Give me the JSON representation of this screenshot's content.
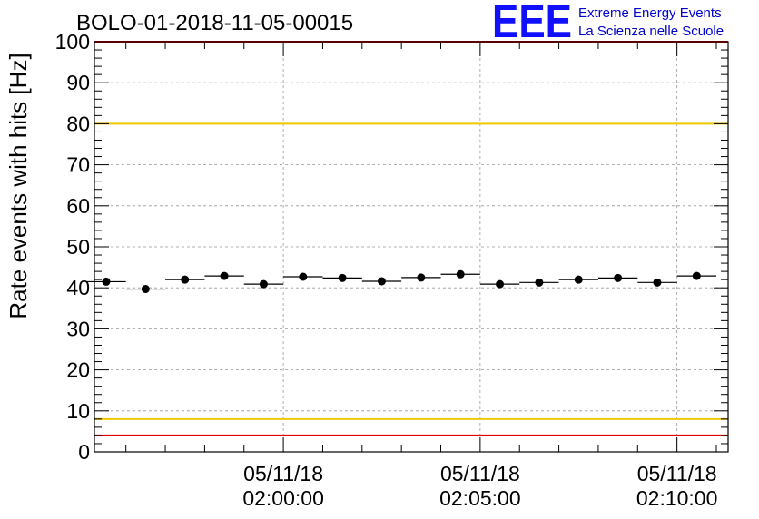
{
  "chart_data": {
    "type": "scatter",
    "title": "BOLO-01-2018-11-05-00015",
    "ylabel": "Rate events with hits [Hz]",
    "xlabel": "",
    "ylim": [
      0,
      100
    ],
    "yticks": [
      "0",
      "10",
      "20",
      "30",
      "40",
      "50",
      "60",
      "70",
      "80",
      "90",
      "100"
    ],
    "xticks": [
      {
        "date": "05/11/18",
        "time": "02:00:00"
      },
      {
        "date": "05/11/18",
        "time": "02:05:00"
      },
      {
        "date": "05/11/18",
        "time": "02:10:00"
      }
    ],
    "x_unit": "minutes after 02:00:00",
    "x_range": [
      -4.8,
      11.3
    ],
    "grid": true,
    "series": [
      {
        "x": [
          -4.5,
          -3.5,
          -2.5,
          -1.5,
          -0.5,
          0.5,
          1.5,
          2.5,
          3.5,
          4.5,
          5.5,
          6.5,
          7.5,
          8.5,
          9.5,
          10.5
        ],
        "x_half_width": 0.5,
        "values": [
          41.5,
          39.7,
          42.0,
          42.9,
          40.9,
          42.7,
          42.4,
          41.6,
          42.5,
          43.3,
          40.9,
          41.3,
          42.0,
          42.4,
          41.3,
          42.9
        ]
      }
    ],
    "reference_lines": [
      {
        "value": 80,
        "color": "#f0c800"
      },
      {
        "value": 8,
        "color": "#f0c800"
      },
      {
        "value": 100,
        "color": "#e00000"
      },
      {
        "value": 4,
        "color": "#e00000"
      }
    ]
  },
  "logo": {
    "mark": "EEE",
    "line1": "Extreme Energy Events",
    "line2": "La Scienza nelle Scuole",
    "color": "#1010ff"
  }
}
